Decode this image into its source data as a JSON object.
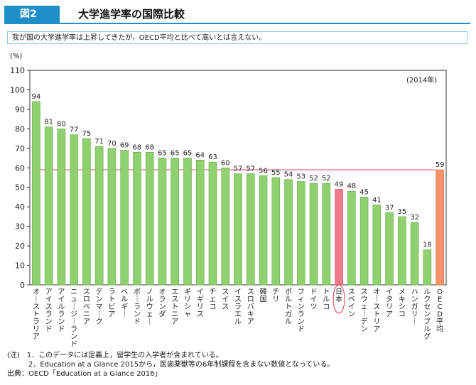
{
  "header": {
    "figure_number": "図2",
    "title": "大学進学率の国際比較"
  },
  "summary": "我が国の大学進学率は上昇してきたが，OECD平均と比べて高いとは言えない。",
  "colors": {
    "accent": "#1d8fc9",
    "bar_default": "#8fd16f",
    "bar_japan": "#f0798e",
    "bar_oecd": "#f4936a",
    "average_line": "#e8506a",
    "japan_circle": "#e0304a"
  },
  "chart_data": {
    "type": "bar",
    "unit_label": "(%)",
    "year_label": "(2014年)",
    "ylim": [
      0,
      110
    ],
    "yticks": [
      0,
      10,
      20,
      30,
      40,
      50,
      60,
      70,
      80,
      90,
      100,
      110
    ],
    "grid": false,
    "average_line_value": 59,
    "categories": [
      "オーストラリア",
      "アイスランド",
      "アイルランド",
      "ニュージーランド",
      "スロベニア",
      "デンマーク",
      "ラトビア",
      "ベルギー",
      "ポーランド",
      "ノルウェー",
      "オランダ",
      "エストニア",
      "ギリシャ",
      "イギリス",
      "チェコ",
      "スイス",
      "イスラエル",
      "スロバキア",
      "韓国",
      "チリ",
      "ポルトガル",
      "フィンランド",
      "ドイツ",
      "トルコ",
      "日本",
      "スペイン",
      "スウェーデン",
      "オーストリア",
      "イタリア",
      "メキシコ",
      "ハンガリー",
      "ルクセンブルグ",
      "OECD平均"
    ],
    "values": [
      94,
      81,
      80,
      77,
      75,
      71,
      70,
      69,
      68,
      68,
      65,
      65,
      65,
      64,
      63,
      60,
      57,
      57,
      56,
      55,
      54,
      53,
      52,
      52,
      49,
      48,
      45,
      41,
      37,
      35,
      32,
      18,
      59
    ],
    "highlight": {
      "japan_index": 24,
      "oecd_index": 32
    }
  },
  "notes": {
    "note1": "(注)　1．このデータには定義上，留学生の入学者が含まれている。",
    "note2": "　　　2．Education at a Glance 2015から，医歯薬獣等の6年制課程を含まない数値となっている。",
    "source": "出典：OECD「Education at a Glance 2016」"
  }
}
